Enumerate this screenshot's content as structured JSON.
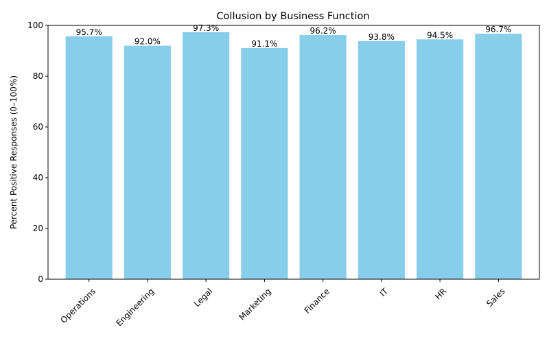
{
  "chart_data": {
    "type": "bar",
    "title": "Collusion by Business Function",
    "xlabel": "",
    "ylabel": "Percent Positive Responses (0–100%)",
    "categories": [
      "Operations",
      "Engineering",
      "Legal",
      "Marketing",
      "Finance",
      "IT",
      "HR",
      "Sales"
    ],
    "values": [
      95.7,
      92.0,
      97.3,
      91.1,
      96.2,
      93.8,
      94.5,
      96.7
    ],
    "data_labels": [
      "95.7%",
      "92.0%",
      "97.3%",
      "91.1%",
      "96.2%",
      "93.8%",
      "94.5%",
      "96.7%"
    ],
    "ylim": [
      0,
      100
    ],
    "yticks": [
      0,
      20,
      40,
      60,
      80,
      100
    ],
    "ytick_labels": [
      "0",
      "20",
      "40",
      "60",
      "80",
      "100"
    ],
    "bar_color": "#87ceeb",
    "grid": false,
    "legend": "none"
  }
}
